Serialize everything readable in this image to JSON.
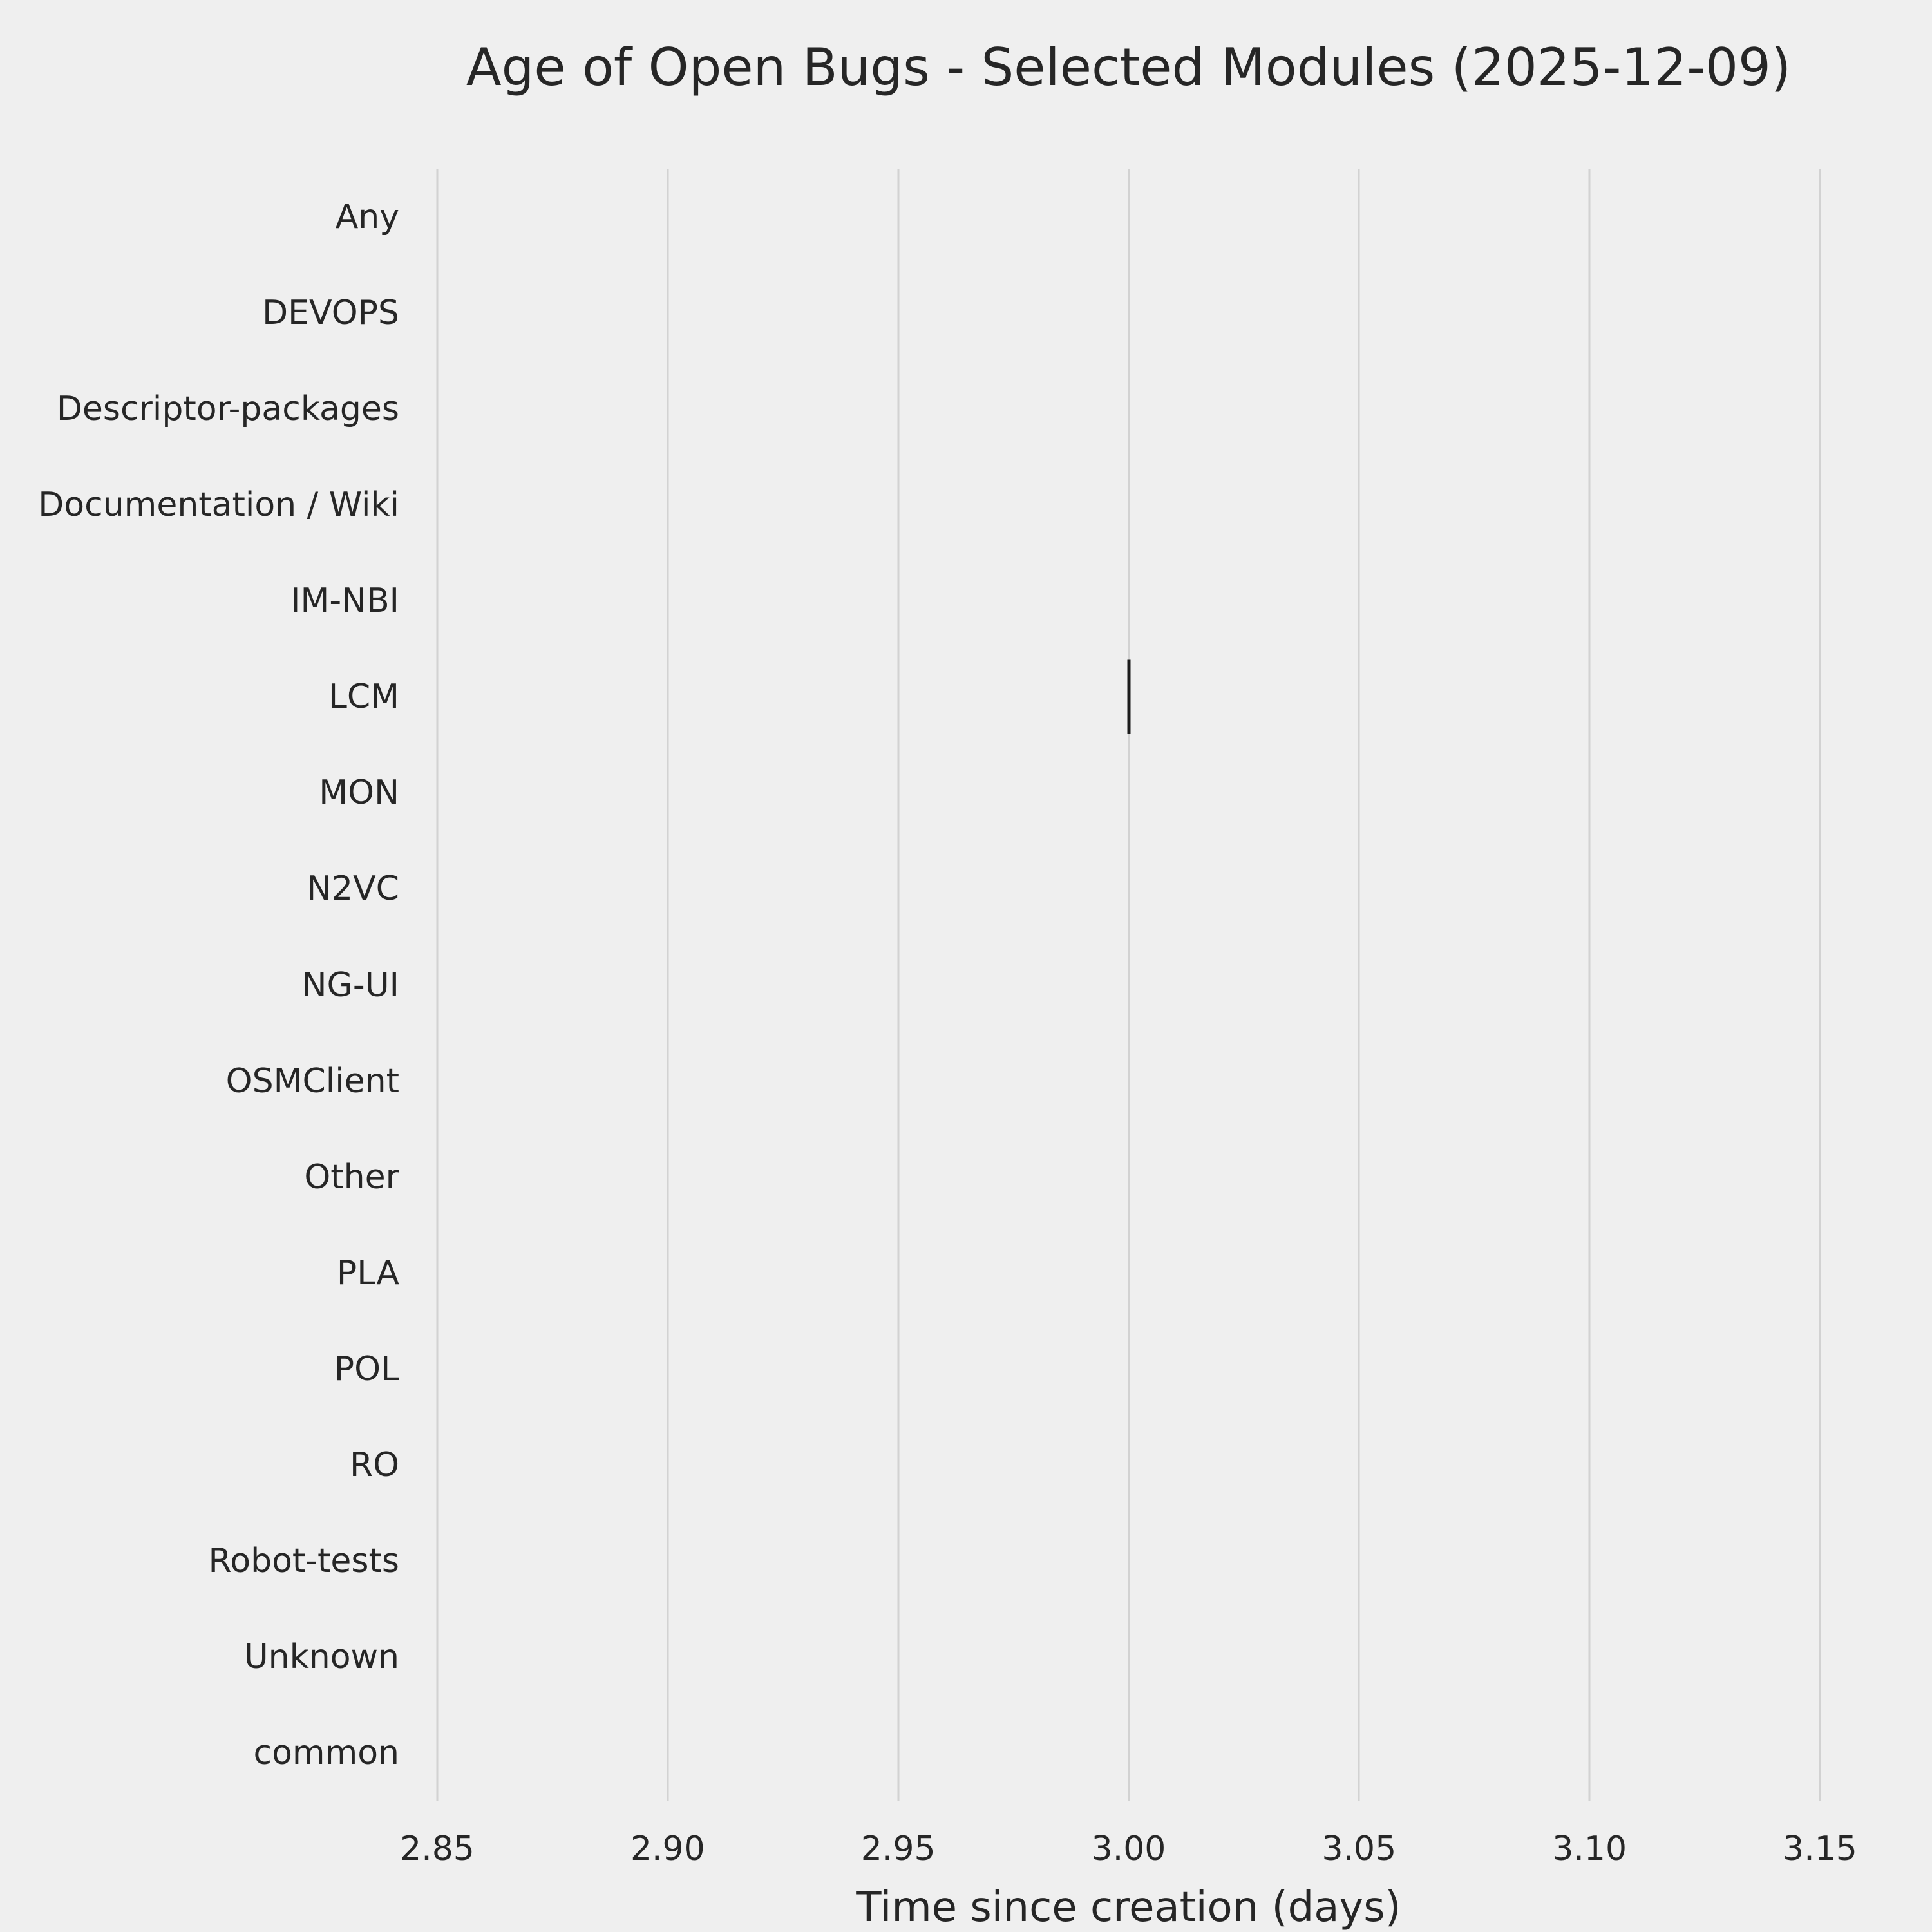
{
  "chart_data": {
    "type": "scatter",
    "title": "Age of Open Bugs - Selected Modules (2025-12-09)",
    "xlabel": "Time since creation (days)",
    "ylabel": "",
    "categories": [
      "Any",
      "DEVOPS",
      "Descriptor-packages",
      "Documentation / Wiki",
      "IM-NBI",
      "LCM",
      "MON",
      "N2VC",
      "NG-UI",
      "OSMClient",
      "Other",
      "PLA",
      "POL",
      "RO",
      "Robot-tests",
      "Unknown",
      "common"
    ],
    "points": [
      {
        "category": "LCM",
        "value": 3.0
      }
    ],
    "xlim": [
      2.85,
      3.15
    ],
    "xticks": [
      2.85,
      2.9,
      2.95,
      3.0,
      3.05,
      3.1,
      3.15
    ],
    "xtick_labels": [
      "2.85",
      "2.90",
      "2.95",
      "3.00",
      "3.05",
      "3.10",
      "3.15"
    ],
    "grid": true,
    "legend": false,
    "marker_style": "vertical-tick",
    "colors": {
      "background": "#efefef",
      "gridline": "#d2d2d2",
      "marker": "#1c1c1c",
      "text": "#262626"
    }
  }
}
